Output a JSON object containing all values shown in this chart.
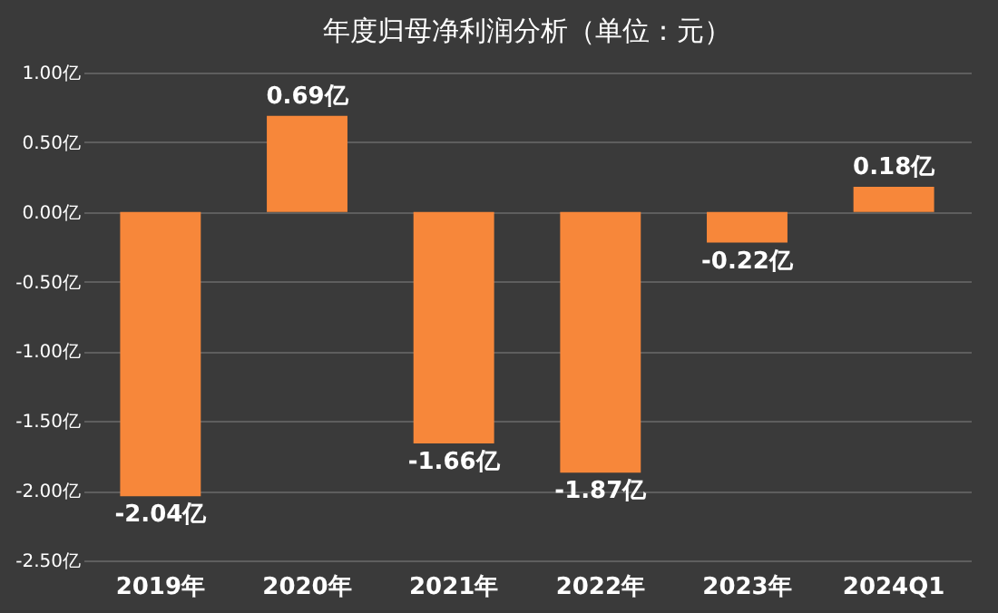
{
  "chart_data": {
    "type": "bar",
    "title": "年度归母净利润分析（单位：元）",
    "categories": [
      "2019年",
      "2020年",
      "2021年",
      "2022年",
      "2023年",
      "2024Q1"
    ],
    "values": [
      -2.04,
      0.69,
      -1.66,
      -1.87,
      -0.22,
      0.18
    ],
    "value_labels": [
      "-2.04亿",
      "0.69亿",
      "-1.66亿",
      "-1.87亿",
      "-0.22亿",
      "0.18亿"
    ],
    "color": "#f7873a",
    "ylim": [
      -2.5,
      1.0
    ],
    "yticks": [
      {
        "value": -2.5,
        "label": "-2.50亿"
      },
      {
        "value": -2.0,
        "label": "-2.00亿"
      },
      {
        "value": -1.5,
        "label": "-1.50亿"
      },
      {
        "value": -1.0,
        "label": "-1.00亿"
      },
      {
        "value": -0.5,
        "label": "-0.50亿"
      },
      {
        "value": 0.0,
        "label": "0.00亿"
      },
      {
        "value": 0.5,
        "label": "0.50亿"
      },
      {
        "value": 1.0,
        "label": "1.00亿"
      }
    ],
    "grid": "y"
  }
}
